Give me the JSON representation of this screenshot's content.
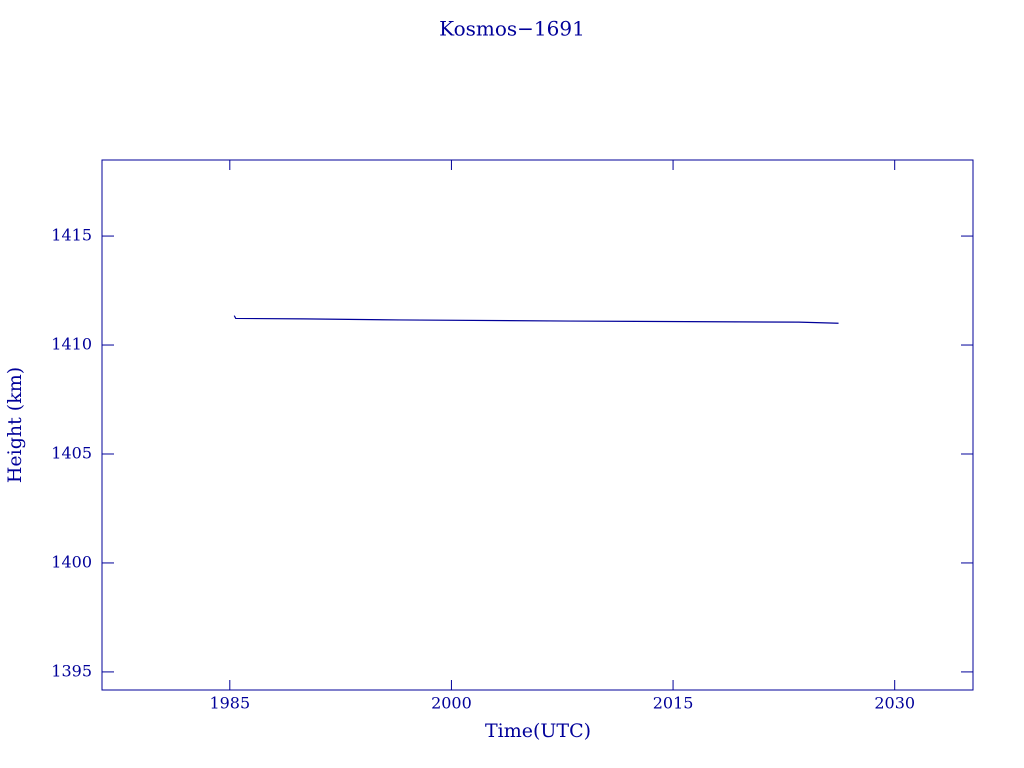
{
  "chart_data": {
    "type": "line",
    "title": "Kosmos−1691",
    "x_label": "Time(UTC)",
    "y_label": "Height (km)",
    "x": [
      1985.3,
      1985.4,
      1990.0,
      1996.5,
      2008.0,
      2023.5,
      2026.2
    ],
    "series": [
      {
        "name": "Kosmos-1691",
        "color": "#000099",
        "values": [
          1411.35,
          1411.22,
          1411.2,
          1411.15,
          1411.1,
          1411.05,
          1411.0
        ]
      }
    ],
    "xlim": [
      1976.35,
      2035.3
    ],
    "xticks": [
      1985,
      2000,
      2015,
      2030
    ],
    "ylim": [
      1394.17,
      1418.49
    ],
    "yticks": [
      1395,
      1400,
      1405,
      1410,
      1415
    ]
  }
}
